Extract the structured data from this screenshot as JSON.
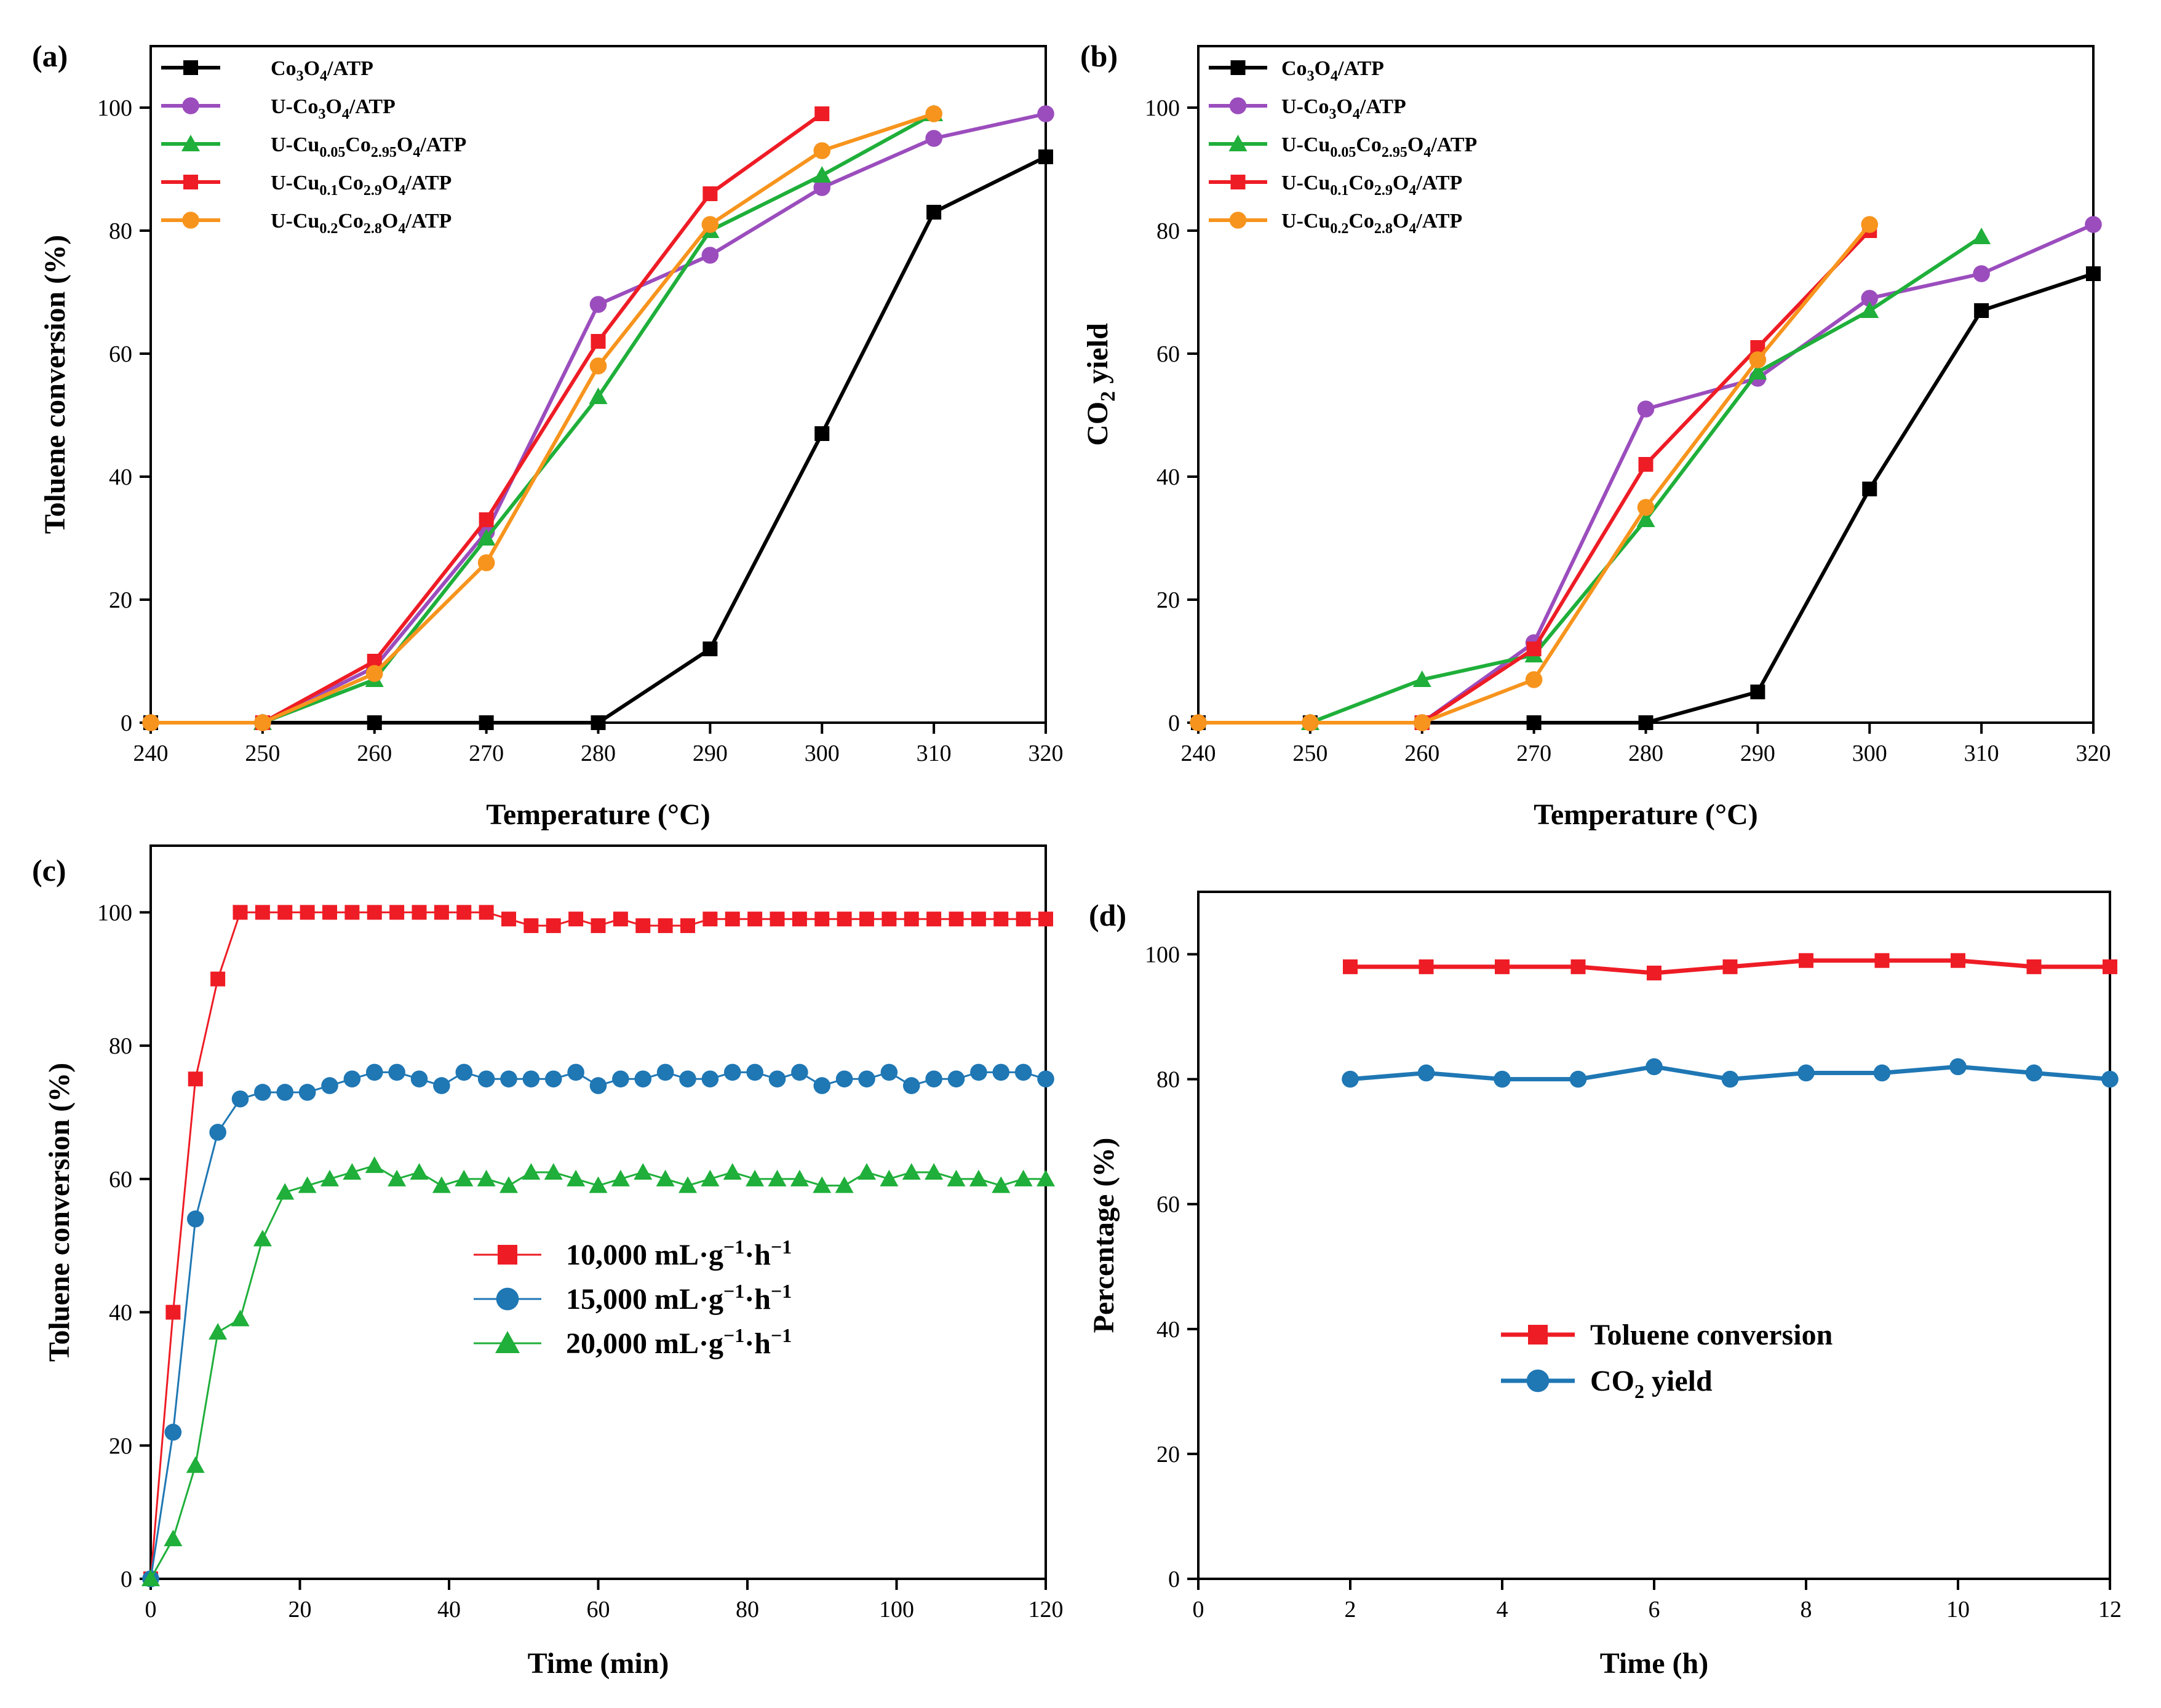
{
  "chart_data": [
    {
      "panel": "(a)",
      "type": "line",
      "xlabel": "Temperature (°C)",
      "ylabel": "Toluene conversion (%)",
      "xlim": [
        240,
        320
      ],
      "ylim": [
        0,
        110
      ],
      "xticks": [
        240,
        250,
        260,
        270,
        280,
        290,
        300,
        310,
        320
      ],
      "yticks": [
        0,
        20,
        40,
        60,
        80,
        100
      ],
      "legend_position": "top-left",
      "series": [
        {
          "key": "co3o4",
          "name": "Co3O4/ATP",
          "base": "Co",
          "sub1": "3",
          "mid": "O",
          "sub2": "4",
          "tail": "/ATP",
          "color": "#000000",
          "marker": "square",
          "x": [
            240,
            250,
            260,
            270,
            280,
            290,
            300,
            310,
            320
          ],
          "y": [
            0,
            0,
            0,
            0,
            0,
            12,
            47,
            83,
            92
          ]
        },
        {
          "key": "uco3o4",
          "name": "U-Co3O4/ATP",
          "base": "U-Co",
          "sub1": "3",
          "mid": "O",
          "sub2": "4",
          "tail": "/ATP",
          "color": "#9b4dbd",
          "marker": "circle",
          "x": [
            250,
            260,
            270,
            280,
            290,
            300,
            310,
            320
          ],
          "y": [
            0,
            9,
            31,
            68,
            76,
            87,
            95,
            99
          ]
        },
        {
          "key": "ucu005",
          "name": "U-Cu0.05Co2.95O4/ATP",
          "base": "U-Cu",
          "sub1": "0.05",
          "mid": "Co",
          "sub2": "2.95",
          "mid2": "O",
          "sub3": "4",
          "tail": "/ATP",
          "color": "#1faf3a",
          "marker": "triangle",
          "x": [
            250,
            260,
            270,
            280,
            290,
            300,
            310
          ],
          "y": [
            0,
            7,
            30,
            53,
            80,
            89,
            99
          ]
        },
        {
          "key": "ucu01",
          "name": "U-Cu0.1Co2.9O4/ATP",
          "base": "U-Cu",
          "sub1": "0.1",
          "mid": "Co",
          "sub2": "2.9",
          "mid2": "O",
          "sub3": "4",
          "tail": "/ATP",
          "color": "#ee1c25",
          "marker": "square",
          "x": [
            250,
            260,
            270,
            280,
            290,
            300
          ],
          "y": [
            0,
            10,
            33,
            62,
            86,
            99
          ]
        },
        {
          "key": "ucu02",
          "name": "U-Cu0.2Co2.8O4/ATP",
          "base": "U-Cu",
          "sub1": "0.2",
          "mid": "Co",
          "sub2": "2.8",
          "mid2": "O",
          "sub3": "4",
          "tail": "/ATP",
          "color": "#f7941d",
          "marker": "circle",
          "x": [
            240,
            250,
            260,
            270,
            280,
            290,
            300,
            310
          ],
          "y": [
            0,
            0,
            8,
            26,
            58,
            81,
            93,
            99
          ]
        }
      ]
    },
    {
      "panel": "(b)",
      "type": "line",
      "xlabel": "Temperature (°C)",
      "ylabel": "CO2 yield",
      "ylabel_base": "CO",
      "ylabel_sub": "2",
      "ylabel_tail": " yield",
      "xlim": [
        240,
        320
      ],
      "ylim": [
        0,
        110
      ],
      "xticks": [
        240,
        250,
        260,
        270,
        280,
        290,
        300,
        310,
        320
      ],
      "yticks": [
        0,
        20,
        40,
        60,
        80,
        100
      ],
      "legend_position": "top-left",
      "series": [
        {
          "key": "co3o4",
          "name": "Co3O4/ATP",
          "base": "Co",
          "sub1": "3",
          "mid": "O",
          "sub2": "4",
          "tail": "/ATP",
          "color": "#000000",
          "marker": "square",
          "x": [
            240,
            250,
            260,
            270,
            280,
            290,
            300,
            310,
            320
          ],
          "y": [
            0,
            0,
            0,
            0,
            0,
            5,
            38,
            67,
            73
          ]
        },
        {
          "key": "uco3o4",
          "name": "U-Co3O4/ATP",
          "base": "U-Co",
          "sub1": "3",
          "mid": "O",
          "sub2": "4",
          "tail": "/ATP",
          "color": "#9b4dbd",
          "marker": "circle",
          "x": [
            260,
            270,
            280,
            290,
            300,
            310,
            320
          ],
          "y": [
            0,
            13,
            51,
            56,
            69,
            73,
            81
          ]
        },
        {
          "key": "ucu005",
          "name": "U-Cu0.05Co2.95O4/ATP",
          "base": "U-Cu",
          "sub1": "0.05",
          "mid": "Co",
          "sub2": "2.95",
          "mid2": "O",
          "sub3": "4",
          "tail": "/ATP",
          "color": "#1faf3a",
          "marker": "triangle",
          "x": [
            250,
            260,
            270,
            280,
            290,
            300,
            310
          ],
          "y": [
            0,
            7,
            11,
            33,
            57,
            67,
            79
          ]
        },
        {
          "key": "ucu01",
          "name": "U-Cu0.1Co2.9O4/ATP",
          "base": "U-Cu",
          "sub1": "0.1",
          "mid": "Co",
          "sub2": "2.9",
          "mid2": "O",
          "sub3": "4",
          "tail": "/ATP",
          "color": "#ee1c25",
          "marker": "square",
          "x": [
            260,
            270,
            280,
            290,
            300
          ],
          "y": [
            0,
            12,
            42,
            61,
            80
          ]
        },
        {
          "key": "ucu02",
          "name": "U-Cu0.2Co2.8O4/ATP",
          "base": "U-Cu",
          "sub1": "0.2",
          "mid": "Co",
          "sub2": "2.8",
          "mid2": "O",
          "sub3": "4",
          "tail": "/ATP",
          "color": "#f7941d",
          "marker": "circle",
          "x": [
            240,
            250,
            260,
            270,
            280,
            290,
            300
          ],
          "y": [
            0,
            0,
            0,
            7,
            35,
            59,
            81
          ]
        }
      ]
    },
    {
      "panel": "(c)",
      "type": "line",
      "xlabel": "Time (min)",
      "ylabel": "Toluene conversion (%)",
      "xlim": [
        0,
        120
      ],
      "ylim": [
        0,
        110
      ],
      "xticks": [
        0,
        20,
        40,
        60,
        80,
        100,
        120
      ],
      "yticks": [
        0,
        20,
        40,
        60,
        80,
        100
      ],
      "legend_position": "center",
      "series": [
        {
          "key": "s10k",
          "name": "10,000 mL·g−1·h−1",
          "base": "10,000 mL·g",
          "sup1": "−1",
          "mid": "·h",
          "sup2": "−1",
          "color": "#ee1c25",
          "marker": "square",
          "x": [
            0,
            3,
            6,
            9,
            12,
            15,
            18,
            21,
            24,
            27,
            30,
            33,
            36,
            39,
            42,
            45,
            48,
            51,
            54,
            57,
            60,
            63,
            66,
            69,
            72,
            75,
            78,
            81,
            84,
            87,
            90,
            93,
            96,
            99,
            102,
            105,
            108,
            111,
            114,
            117,
            120
          ],
          "y": [
            0,
            40,
            75,
            90,
            100,
            100,
            100,
            100,
            100,
            100,
            100,
            100,
            100,
            100,
            100,
            100,
            99,
            98,
            98,
            99,
            98,
            99,
            98,
            98,
            98,
            99,
            99,
            99,
            99,
            99,
            99,
            99,
            99,
            99,
            99,
            99,
            99,
            99,
            99,
            99,
            99
          ]
        },
        {
          "key": "s15k",
          "name": "15,000 mL·g−1·h−1",
          "base": "15,000 mL·g",
          "sup1": "−1",
          "mid": "·h",
          "sup2": "−1",
          "color": "#1f77b4",
          "marker": "circle",
          "x": [
            0,
            3,
            6,
            9,
            12,
            15,
            18,
            21,
            24,
            27,
            30,
            33,
            36,
            39,
            42,
            45,
            48,
            51,
            54,
            57,
            60,
            63,
            66,
            69,
            72,
            75,
            78,
            81,
            84,
            87,
            90,
            93,
            96,
            99,
            102,
            105,
            108,
            111,
            114,
            117,
            120
          ],
          "y": [
            0,
            22,
            54,
            67,
            72,
            73,
            73,
            73,
            74,
            75,
            76,
            76,
            75,
            74,
            76,
            75,
            75,
            75,
            75,
            76,
            74,
            75,
            75,
            76,
            75,
            75,
            76,
            76,
            75,
            76,
            74,
            75,
            75,
            76,
            74,
            75,
            75,
            76,
            76,
            76,
            75
          ]
        },
        {
          "key": "s20k",
          "name": "20,000 mL·g−1·h−1",
          "base": "20,000 mL·g",
          "sup1": "−1",
          "mid": "·h",
          "sup2": "−1",
          "color": "#1faf3a",
          "marker": "triangle",
          "x": [
            0,
            3,
            6,
            9,
            12,
            15,
            18,
            21,
            24,
            27,
            30,
            33,
            36,
            39,
            42,
            45,
            48,
            51,
            54,
            57,
            60,
            63,
            66,
            69,
            72,
            75,
            78,
            81,
            84,
            87,
            90,
            93,
            96,
            99,
            102,
            105,
            108,
            111,
            114,
            117,
            120
          ],
          "y": [
            0,
            6,
            17,
            37,
            39,
            51,
            58,
            59,
            60,
            61,
            62,
            60,
            61,
            59,
            60,
            60,
            59,
            61,
            61,
            60,
            59,
            60,
            61,
            60,
            59,
            60,
            61,
            60,
            60,
            60,
            59,
            59,
            61,
            60,
            61,
            61,
            60,
            60,
            59,
            60,
            60
          ]
        }
      ]
    },
    {
      "panel": "(d)",
      "type": "line",
      "xlabel": "Time (h)",
      "ylabel": "Percentage (%)",
      "xlim": [
        0,
        12
      ],
      "ylim": [
        0,
        110
      ],
      "xticks": [
        0,
        2,
        4,
        6,
        8,
        10,
        12
      ],
      "yticks": [
        0,
        20,
        40,
        60,
        80,
        100
      ],
      "legend_position": "center",
      "series": [
        {
          "key": "tol",
          "name": "Toluene conversion",
          "base": "Toluene conversion",
          "color": "#ee1c25",
          "marker": "square",
          "x": [
            2,
            3,
            4,
            5,
            6,
            7,
            8,
            9,
            10,
            11,
            12
          ],
          "y": [
            98,
            98,
            98,
            98,
            97,
            98,
            99,
            99,
            99,
            98,
            98
          ]
        },
        {
          "key": "co2",
          "name": "CO2 yield",
          "base": "CO",
          "sub1": "2",
          "tail": " yield",
          "color": "#1f77b4",
          "marker": "circle",
          "x": [
            2,
            3,
            4,
            5,
            6,
            7,
            8,
            9,
            10,
            11,
            12
          ],
          "y": [
            80,
            81,
            80,
            80,
            82,
            80,
            81,
            81,
            82,
            81,
            80
          ]
        }
      ]
    }
  ]
}
